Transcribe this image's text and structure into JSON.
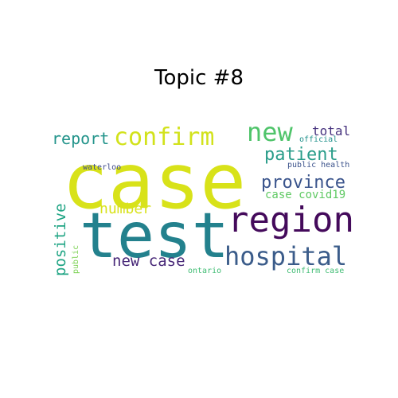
{
  "title": "Topic #8",
  "words": [
    {
      "id": "case",
      "text": "case",
      "color": "#d8e219"
    },
    {
      "id": "test",
      "text": "test",
      "color": "#23818d"
    },
    {
      "id": "region",
      "text": "region",
      "color": "#440a5b"
    },
    {
      "id": "hospital",
      "text": "hospital",
      "color": "#3b5c8a"
    },
    {
      "id": "confirm",
      "text": "confirm",
      "color": "#d2e21b"
    },
    {
      "id": "new",
      "text": "new",
      "color": "#4fc46a"
    },
    {
      "id": "report",
      "text": "report",
      "color": "#23948b"
    },
    {
      "id": "patient",
      "text": "patient",
      "color": "#2a9d8a"
    },
    {
      "id": "total",
      "text": "total",
      "color": "#46327e"
    },
    {
      "id": "province",
      "text": "province",
      "color": "#3a548c"
    },
    {
      "id": "number",
      "text": "number",
      "color": "#d8e21a"
    },
    {
      "id": "new-case",
      "text": "new case",
      "color": "#482878"
    },
    {
      "id": "positive",
      "text": "positive",
      "color": "#21a585"
    },
    {
      "id": "case-covid19",
      "text": "case covid19",
      "color": "#5ec962"
    },
    {
      "id": "waterloo",
      "text": "waterloo",
      "color": "#3e4a89"
    },
    {
      "id": "public-health",
      "text": "public health",
      "color": "#3b528b"
    },
    {
      "id": "official",
      "text": "official",
      "color": "#21918c"
    },
    {
      "id": "ontario",
      "text": "ontario",
      "color": "#3fbc73"
    },
    {
      "id": "confirm-case",
      "text": "confirm case",
      "color": "#3fbc73"
    },
    {
      "id": "public",
      "text": "public",
      "color": "#7ad151"
    }
  ]
}
